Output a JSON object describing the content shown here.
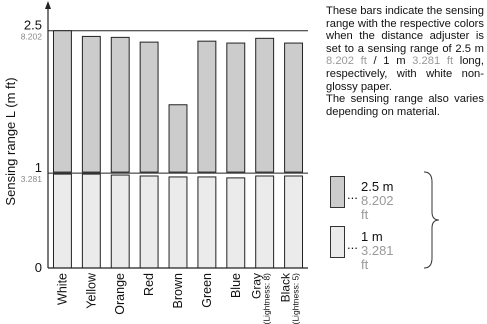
{
  "chart_data": {
    "type": "bar",
    "ylabel": "Sensing range L (m ft)",
    "categories": [
      "White",
      "Yellow",
      "Orange",
      "Red",
      "Brown",
      "Green",
      "Blue",
      "Gray (Lightness: 8)",
      "Black (Lightness: 5)"
    ],
    "category_labels": [
      [
        "White"
      ],
      [
        "Yellow"
      ],
      [
        "Orange"
      ],
      [
        "Red"
      ],
      [
        "Brown"
      ],
      [
        "Green"
      ],
      [
        "Blue"
      ],
      [
        "Gray",
        "(Lightness: 8)"
      ],
      [
        "Black",
        "(Lightness: 5)"
      ]
    ],
    "series": [
      {
        "name": "2.5 m / 8.202 ft",
        "values": [
          2.5,
          2.44,
          2.43,
          2.38,
          1.72,
          2.39,
          2.37,
          2.42,
          2.37
        ]
      },
      {
        "name": "1 m / 3.281 ft",
        "values": [
          1.0,
          1.0,
          0.99,
          0.98,
          0.97,
          0.97,
          0.96,
          0.98,
          0.98
        ]
      }
    ],
    "ticks": [
      {
        "value": 0,
        "label": "0",
        "sublabel": ""
      },
      {
        "value": 1,
        "label": "1",
        "sublabel": "3.281"
      },
      {
        "value": 2.5,
        "label": "2.5",
        "sublabel": "8.202"
      }
    ],
    "ylim": [
      0,
      2.75
    ],
    "colors": {
      "long_range": "#cccccc",
      "short_range": "#ebebeb",
      "stroke": "#222222"
    }
  },
  "description": {
    "line1": "These bars indicate the sensing range with the respective colors when the distance adjuster is set to a sensing range of 2.5 m ",
    "ft1": "8.202 ft",
    "mid": " / 1 m ",
    "ft2": "3.281 ft",
    "line2": " long, respectively, with white non-glossy paper.",
    "line3": "The sensing range also varies depending on material."
  },
  "legend": [
    {
      "dots": "...",
      "metric": "2.5 m",
      "imperial": "8.202 ft",
      "color": "#cccccc"
    },
    {
      "dots": "...",
      "metric": "1 m",
      "imperial": "3.281 ft",
      "color": "#ebebeb"
    }
  ]
}
